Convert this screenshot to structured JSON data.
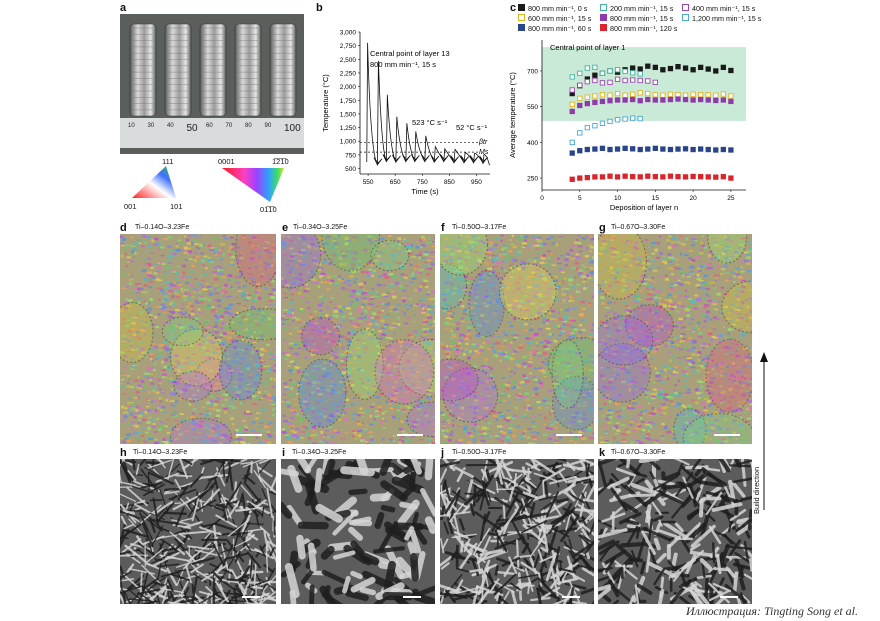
{
  "panels": {
    "a": "a",
    "b": "b",
    "c": "c",
    "d": "d",
    "e": "e",
    "f": "f",
    "g": "g",
    "h": "h",
    "i": "i",
    "j": "j",
    "k": "k"
  },
  "ruler_ticks": [
    "10",
    "30",
    "40",
    "50",
    "60",
    "70",
    "80",
    "90",
    "100"
  ],
  "ipf_cubic": {
    "top": "111",
    "left": "001",
    "right": "101"
  },
  "ipf_hex": {
    "left": "0001",
    "right": "1̅2̅1̅0",
    "bottom": "01̅1̅0"
  },
  "chart_b": {
    "annotation_title": "Central point of layer 13",
    "annotation_sub": "800 mm min⁻¹, 15 s",
    "rate1": "523 °C s⁻¹",
    "rate2": "52 °C s⁻¹",
    "beta_label": "βtr",
    "ms_label": "Ms"
  },
  "chart_c": {
    "inner_label": "Central point of layer 1"
  },
  "chart_data": [
    {
      "type": "line",
      "xlabel": "Time (s)",
      "ylabel": "Temperature (°C)",
      "xlim": [
        520,
        1000
      ],
      "ylim": [
        400,
        3000
      ],
      "x_ticks": [
        "550",
        "650",
        "750",
        "850",
        "950"
      ],
      "y_ticks": [
        "500",
        "750",
        "1,000",
        "1,250",
        "1,500",
        "1,750",
        "2,000",
        "2,250",
        "2,500",
        "2,750",
        "3,000"
      ],
      "reference_lines": [
        {
          "name": "βtr",
          "y": 980
        },
        {
          "name": "Ms",
          "y": 800
        }
      ],
      "series": [
        {
          "x": [
            545,
            548,
            585,
            588,
            618,
            621,
            653,
            656,
            690,
            693,
            723,
            726,
            760,
            763,
            795,
            798,
            830,
            833,
            868,
            871,
            905,
            908,
            940,
            943,
            975,
            978,
            998
          ],
          "values": [
            620,
            2800,
            560,
            2470,
            620,
            1850,
            610,
            1450,
            620,
            1330,
            620,
            1180,
            620,
            1100,
            610,
            900,
            620,
            860,
            600,
            850,
            600,
            790,
            600,
            780,
            590,
            760,
            560
          ]
        }
      ]
    },
    {
      "type": "scatter",
      "xlabel": "Deposition of layer n",
      "ylabel": "Average temperature (°C)",
      "xlim": [
        0,
        27
      ],
      "ylim": [
        200,
        830
      ],
      "x_ticks": [
        "0",
        "5",
        "10",
        "15",
        "20",
        "25"
      ],
      "y_ticks": [
        "250",
        "400",
        "550",
        "700"
      ],
      "shaded_band": [
        490,
        800
      ],
      "series": [
        {
          "name": "800 mm min⁻¹, 0 s",
          "color": "#1a1a1a",
          "filled": true,
          "x": [
            4,
            5,
            6,
            7,
            8,
            9,
            10,
            11,
            12,
            13,
            14,
            15,
            16,
            17,
            18,
            19,
            20,
            21,
            22,
            23,
            24,
            25
          ],
          "values": [
            605,
            638,
            666,
            682,
            690,
            700,
            695,
            705,
            712,
            708,
            720,
            715,
            705,
            710,
            718,
            712,
            705,
            715,
            708,
            700,
            715,
            702
          ]
        },
        {
          "name": "200 mm min⁻¹, 15 s",
          "color": "#3fb6a2",
          "filled": false,
          "x": [
            4,
            5,
            6,
            7,
            8,
            9,
            10,
            11,
            12,
            13
          ],
          "values": [
            675,
            690,
            712,
            715,
            690,
            700,
            705,
            698,
            692,
            688
          ]
        },
        {
          "name": "400 mm min⁻¹, 15 s",
          "color": "#9e46b3",
          "filled": false,
          "x": [
            4,
            5,
            6,
            7,
            8,
            9,
            10,
            11,
            12,
            13,
            14,
            15
          ],
          "values": [
            620,
            640,
            655,
            660,
            650,
            652,
            665,
            660,
            662,
            660,
            658,
            652
          ]
        },
        {
          "name": "600 mm min⁻¹, 15 s",
          "color": "#e8b320",
          "filled": false,
          "x": [
            4,
            5,
            6,
            7,
            8,
            9,
            10,
            11,
            12,
            13,
            14,
            15,
            16,
            17,
            18,
            19,
            20,
            21,
            22,
            23,
            24,
            25
          ],
          "values": [
            560,
            585,
            590,
            595,
            600,
            598,
            605,
            598,
            602,
            608,
            605,
            600,
            598,
            602,
            600,
            598,
            602,
            600,
            600,
            598,
            603,
            595
          ]
        },
        {
          "name": "800 mm min⁻¹, 15 s",
          "color": "#8e3aa8",
          "filled": true,
          "x": [
            4,
            5,
            6,
            7,
            8,
            9,
            10,
            11,
            12,
            13,
            14,
            15,
            16,
            17,
            18,
            19,
            20,
            21,
            22,
            23,
            24,
            25
          ],
          "values": [
            530,
            555,
            563,
            568,
            572,
            575,
            578,
            578,
            580,
            575,
            580,
            578,
            578,
            580,
            582,
            580,
            578,
            580,
            578,
            576,
            578,
            572
          ]
        },
        {
          "name": "1,200 mm min⁻¹, 15 s",
          "color": "#4aa7d8",
          "filled": false,
          "x": [
            4,
            5,
            6,
            7,
            8,
            9,
            10,
            11,
            12,
            13
          ],
          "values": [
            400,
            440,
            462,
            470,
            480,
            488,
            495,
            498,
            502,
            500
          ]
        },
        {
          "name": "800 mm min⁻¹, 60 s",
          "color": "#28448a",
          "filled": true,
          "x": [
            4,
            5,
            6,
            7,
            8,
            9,
            10,
            11,
            12,
            13,
            14,
            15,
            16,
            17,
            18,
            19,
            20,
            21,
            22,
            23,
            24,
            25
          ],
          "values": [
            355,
            365,
            370,
            372,
            375,
            370,
            372,
            375,
            373,
            370,
            372,
            375,
            372,
            370,
            372,
            373,
            370,
            372,
            370,
            368,
            370,
            368
          ]
        },
        {
          "name": "800 mm min⁻¹, 120 s",
          "color": "#d9252b",
          "filled": true,
          "x": [
            4,
            5,
            6,
            7,
            8,
            9,
            10,
            11,
            12,
            13,
            14,
            15,
            16,
            17,
            18,
            19,
            20,
            21,
            22,
            23,
            24,
            25
          ],
          "values": [
            245,
            250,
            252,
            255,
            255,
            258,
            255,
            258,
            256,
            255,
            258,
            256,
            255,
            258,
            256,
            255,
            257,
            256,
            255,
            254,
            256,
            250
          ]
        }
      ]
    }
  ],
  "ebsd_captions": [
    "Ti–0.14O–3.23Fe",
    "Ti–0.34O–3.25Fe",
    "Ti–0.50O–3.17Fe",
    "Ti–0.67O–3.30Fe"
  ],
  "sem_captions": [
    "Ti–0.14O–3.23Fe",
    "Ti–0.34O–3.25Fe",
    "Ti–0.50O–3.17Fe",
    "Ti–0.67O–3.30Fe"
  ],
  "build_direction": "Build direction",
  "credit": "Иллюстрация: Tingting Song et al."
}
